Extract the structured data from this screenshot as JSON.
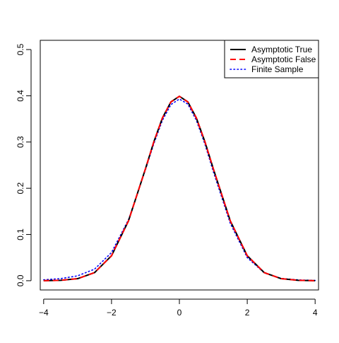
{
  "chart_data": {
    "type": "line",
    "title": "",
    "xlabel": "",
    "ylabel": "",
    "xlim": [
      -4.1,
      4.1
    ],
    "ylim": [
      -0.02,
      0.52
    ],
    "x_ticks": [
      -4,
      -2,
      0,
      2,
      4
    ],
    "x_tick_labels": [
      "−4",
      "−2",
      "0",
      "2",
      "4"
    ],
    "y_ticks": [
      0.0,
      0.1,
      0.2,
      0.3,
      0.4,
      0.5
    ],
    "y_tick_labels": [
      "0.0",
      "0.1",
      "0.2",
      "0.3",
      "0.4",
      "0.5"
    ],
    "grid": false,
    "legend_position": "top-right",
    "series": [
      {
        "name": "Asymptotic True",
        "color": "#000000",
        "line_style": "solid",
        "x": [
          -4.0,
          -3.5,
          -3.0,
          -2.5,
          -2.0,
          -1.5,
          -1.0,
          -0.75,
          -0.5,
          -0.25,
          0.0,
          0.25,
          0.5,
          0.75,
          1.0,
          1.5,
          2.0,
          2.5,
          3.0,
          3.5,
          4.0
        ],
        "y": [
          0.0001,
          0.0009,
          0.0044,
          0.0175,
          0.054,
          0.1295,
          0.242,
          0.3011,
          0.3521,
          0.3867,
          0.3989,
          0.3867,
          0.3521,
          0.3011,
          0.242,
          0.1295,
          0.054,
          0.0175,
          0.0044,
          0.0009,
          0.0001
        ]
      },
      {
        "name": "Asymptotic False",
        "color": "#ff0000",
        "line_style": "dashed",
        "x": [
          -4.0,
          -3.5,
          -3.0,
          -2.5,
          -2.0,
          -1.5,
          -1.0,
          -0.75,
          -0.5,
          -0.25,
          0.0,
          0.25,
          0.5,
          0.75,
          1.0,
          1.5,
          2.0,
          2.5,
          3.0,
          3.5,
          4.0
        ],
        "y": [
          0.0001,
          0.0009,
          0.0044,
          0.0175,
          0.054,
          0.1295,
          0.242,
          0.3011,
          0.3521,
          0.3867,
          0.3989,
          0.3867,
          0.3521,
          0.3011,
          0.242,
          0.1295,
          0.054,
          0.0175,
          0.0044,
          0.0009,
          0.0001
        ]
      },
      {
        "name": "Finite Sample",
        "color": "#0000ff",
        "line_style": "dotted",
        "x": [
          -4.0,
          -3.5,
          -3.0,
          -2.5,
          -2.0,
          -1.5,
          -1.0,
          -0.75,
          -0.5,
          -0.25,
          0.0,
          0.25,
          0.5,
          0.75,
          1.0,
          1.5,
          2.0,
          2.5,
          3.0,
          3.5,
          4.0
        ],
        "y": [
          0.002,
          0.0045,
          0.0105,
          0.025,
          0.061,
          0.132,
          0.24,
          0.297,
          0.347,
          0.381,
          0.393,
          0.382,
          0.347,
          0.296,
          0.236,
          0.124,
          0.05,
          0.017,
          0.005,
          0.0018,
          0.0006
        ]
      }
    ]
  }
}
